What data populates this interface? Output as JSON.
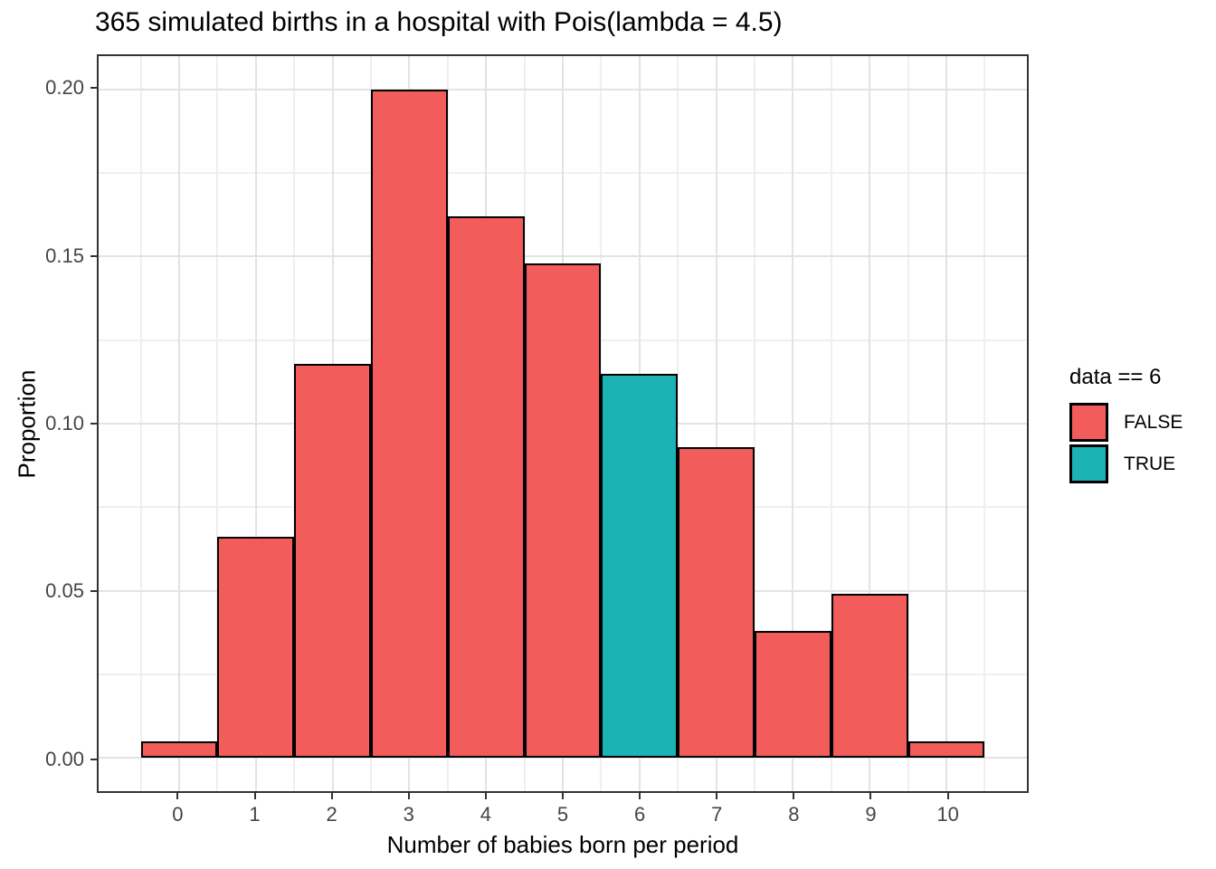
{
  "chart_data": {
    "type": "bar",
    "title": "365 simulated births in a hospital with Pois(lambda = 4.5)",
    "xlabel": "Number of babies born per period",
    "ylabel": "Proportion",
    "categories": [
      0,
      1,
      2,
      3,
      4,
      5,
      6,
      7,
      8,
      9,
      10
    ],
    "values": [
      0.005,
      0.066,
      0.118,
      0.2,
      0.162,
      0.148,
      0.115,
      0.093,
      0.038,
      0.049,
      0.005
    ],
    "highlight_category": 6,
    "bar_width": 1.0,
    "legend": {
      "title": "data == 6",
      "position": "right",
      "entries": [
        {
          "label": "FALSE",
          "color": "#F25D5B"
        },
        {
          "label": "TRUE",
          "color": "#1CB3B4"
        }
      ]
    },
    "axes": {
      "xlim": [
        -1.05,
        11.05
      ],
      "ylim": [
        -0.01,
        0.21
      ],
      "x_breaks": [
        0,
        1,
        2,
        3,
        4,
        5,
        6,
        7,
        8,
        9,
        10
      ],
      "x_tick_labels": [
        "0",
        "1",
        "2",
        "3",
        "4",
        "5",
        "6",
        "7",
        "8",
        "9",
        "10"
      ],
      "x_minor_breaks": [
        -0.5,
        0.5,
        1.5,
        2.5,
        3.5,
        4.5,
        5.5,
        6.5,
        7.5,
        8.5,
        9.5,
        10.5
      ],
      "y_breaks": [
        0.0,
        0.05,
        0.1,
        0.15,
        0.2
      ],
      "y_tick_labels": [
        "0.00",
        "0.05",
        "0.10",
        "0.15",
        "0.20"
      ],
      "y_minor_breaks": [
        0.025,
        0.075,
        0.125,
        0.175
      ],
      "grid": true
    },
    "colors": {
      "fill_false": "#F25D5B",
      "fill_true": "#1CB3B4",
      "bar_stroke": "#000000",
      "grid_major": "#e3e3e3",
      "grid_minor": "#efefef",
      "panel_border": "#333333",
      "background": "#ffffff"
    }
  }
}
